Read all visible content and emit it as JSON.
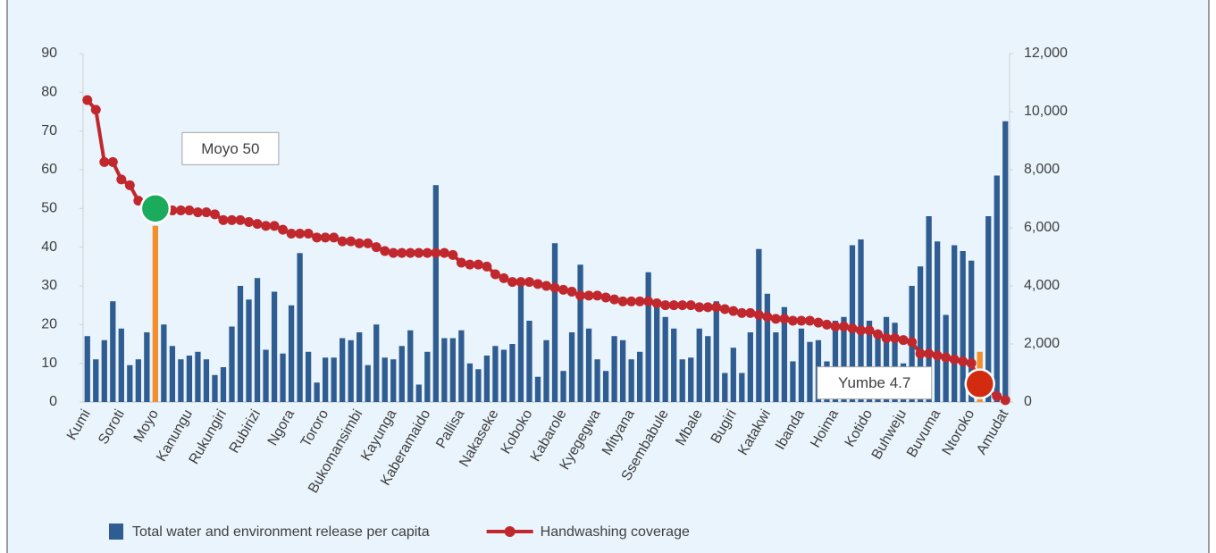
{
  "chart_data": {
    "type": "combo",
    "categories": [
      "Kumi",
      null,
      null,
      null,
      "Soroti",
      null,
      null,
      null,
      "Moyo",
      null,
      null,
      null,
      "Kanungu",
      null,
      null,
      null,
      "Rukungiri",
      null,
      null,
      null,
      "Rubirizi",
      null,
      null,
      null,
      "Ngora",
      null,
      null,
      null,
      "Tororo",
      null,
      null,
      null,
      "Bukomansimbi",
      null,
      null,
      null,
      "Kayunga",
      null,
      null,
      null,
      "Kaberamaido",
      null,
      null,
      null,
      "Pallisa",
      null,
      null,
      null,
      "Nakaseke",
      null,
      null,
      null,
      "Koboko",
      null,
      null,
      null,
      "Kabarole",
      null,
      null,
      null,
      "Kyegegwa",
      null,
      null,
      null,
      "Mityana",
      null,
      null,
      null,
      "Ssembabule",
      null,
      null,
      null,
      "Mbale",
      null,
      null,
      null,
      "Bugiri",
      null,
      null,
      null,
      "Katakwi",
      null,
      null,
      null,
      "Ibanda",
      null,
      null,
      null,
      "Hoima",
      null,
      null,
      null,
      "Kotido",
      null,
      null,
      null,
      "Buhweju",
      null,
      null,
      null,
      "Buvuma",
      null,
      null,
      null,
      "Ntoroko",
      null,
      null,
      null,
      "Amudat"
    ],
    "series": [
      {
        "name": "Total water and environment release per capita",
        "type": "bar",
        "axis": "y2",
        "color": "#2f5c91",
        "values": [
          2270,
          1470,
          2130,
          3470,
          2530,
          1270,
          1470,
          2400,
          6070,
          2670,
          1930,
          1470,
          1600,
          1730,
          1470,
          930,
          1200,
          2600,
          4000,
          3530,
          4270,
          1800,
          3800,
          1670,
          3330,
          5130,
          1730,
          670,
          1530,
          1530,
          2200,
          2130,
          2400,
          1270,
          2670,
          1530,
          1470,
          1930,
          2470,
          600,
          1730,
          7470,
          2200,
          2200,
          2470,
          1330,
          1130,
          1600,
          1930,
          1800,
          2000,
          4130,
          2800,
          870,
          2130,
          5470,
          1070,
          2400,
          4730,
          2530,
          1470,
          1070,
          2270,
          2130,
          1470,
          1730,
          4470,
          3470,
          2930,
          2530,
          1470,
          1530,
          2530,
          2270,
          3470,
          1000,
          1870,
          1000,
          2400,
          5270,
          3730,
          2400,
          3270,
          1400,
          2530,
          2070,
          2130,
          1400,
          2800,
          2930,
          5400,
          5600,
          2800,
          2270,
          2930,
          2730,
          1330,
          4000,
          4670,
          6400,
          5530,
          3000,
          5400,
          5200,
          4870,
          1730,
          6400,
          7800,
          9670
        ]
      },
      {
        "name": "Handwashing coverage",
        "type": "line",
        "color": "#c0282d",
        "values": [
          78,
          75.5,
          62,
          62,
          57.5,
          56,
          52,
          50.5,
          50,
          50,
          49.5,
          49.5,
          49.5,
          49,
          49,
          48.5,
          47,
          47,
          47,
          46.5,
          46,
          45.5,
          45.5,
          44.5,
          43.5,
          43.5,
          43.5,
          42.5,
          42.5,
          42.5,
          41.5,
          41.5,
          41,
          41,
          40,
          39,
          38.5,
          38.5,
          38.5,
          38.5,
          38.5,
          38.5,
          38.5,
          38,
          36,
          35.5,
          35.5,
          35,
          33,
          32,
          31,
          31,
          31,
          30.5,
          30,
          29.5,
          29,
          28.5,
          27.5,
          27.5,
          27.5,
          27,
          26.5,
          26,
          26,
          26,
          26,
          25.5,
          25,
          25,
          25,
          25,
          24.5,
          24.5,
          24.5,
          24,
          23.5,
          23,
          23,
          22.5,
          22,
          21.5,
          21.5,
          21,
          21,
          21,
          20.5,
          20,
          19.5,
          19.5,
          19,
          18.5,
          18.5,
          17.5,
          16.5,
          16.5,
          16,
          15.5,
          12.5,
          12.5,
          12,
          11.5,
          11,
          10.5,
          10,
          4.7,
          3,
          1.5,
          0.5
        ]
      }
    ],
    "ylim": [
      0,
      90
    ],
    "yticks": [
      0,
      10,
      20,
      30,
      40,
      50,
      60,
      70,
      80,
      90
    ],
    "y2lim": [
      0,
      12000
    ],
    "y2ticks": [
      0,
      {
        "value": 2000,
        "label": "2,000"
      },
      {
        "value": 4000,
        "label": "4,000"
      },
      {
        "value": 6000,
        "label": "6,000"
      },
      {
        "value": 8000,
        "label": "8,000"
      },
      {
        "value": 10000,
        "label": "10,000"
      },
      {
        "value": 12000,
        "label": "12,000"
      }
    ],
    "grid": false,
    "annotations": [
      {
        "text": "Moyo 50",
        "index": 8,
        "bar_color": "#f28e2b",
        "marker_color": "#1aab5c"
      },
      {
        "text": "Yumbe 4.7",
        "index": 105,
        "bar_color": "#f28e2b",
        "marker_color": "#d22b0f"
      }
    ]
  }
}
